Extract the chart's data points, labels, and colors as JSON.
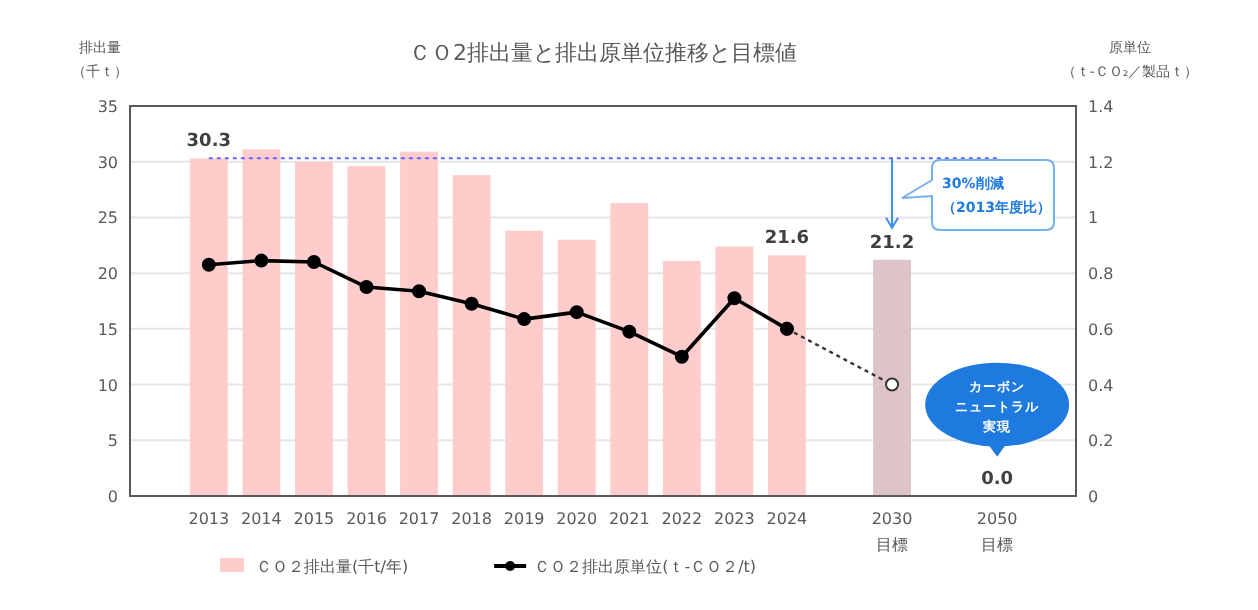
{
  "chart_data": {
    "type": "bar",
    "title": "ＣＯ2排出量と排出原単位推移と目標値",
    "ylabel": "排出量（千ｔ）",
    "y2label": "原単位（ｔ-ＣＯ₂／製品ｔ）",
    "categories": [
      "2013",
      "2014",
      "2015",
      "2016",
      "2017",
      "2018",
      "2019",
      "2020",
      "2021",
      "2022",
      "2023",
      "2024",
      null,
      "2030\n目標",
      null,
      "2050\n目標"
    ],
    "series": [
      {
        "name": "ＣＯ２排出量(千t/年)",
        "color": "#ffcccc",
        "colors": [
          "#ffcccc",
          "#ffcccc",
          "#ffcccc",
          "#ffcccc",
          "#ffcccc",
          "#ffcccc",
          "#ffcccc",
          "#ffcccc",
          "#ffcccc",
          "#ffcccc",
          "#ffcccc",
          "#ffcccc",
          null,
          "#dcc4c8",
          null,
          "#ffcccc"
        ],
        "values": [
          30.3,
          31.1,
          30.0,
          29.6,
          30.9,
          28.8,
          23.8,
          23.0,
          26.3,
          21.1,
          22.4,
          21.6,
          null,
          21.2,
          null,
          0.0
        ],
        "value_labels": [
          "30.3",
          null,
          null,
          null,
          null,
          null,
          null,
          null,
          null,
          null,
          null,
          "21.6",
          null,
          "21.2",
          null,
          "0.0"
        ]
      },
      {
        "name": "ＣＯ２排出原単位(ｔ-ＣＯ２/t)",
        "type": "line",
        "axis": "y2",
        "color": "#000000",
        "marker": "circle",
        "line_style": "solid",
        "values": [
          0.83,
          0.845,
          0.84,
          0.75,
          0.735,
          0.69,
          0.635,
          0.66,
          0.59,
          0.5,
          0.71,
          0.6,
          null,
          null,
          null,
          null
        ]
      },
      {
        "type": "line",
        "axis": "y2",
        "color": "#333333",
        "marker": "circle",
        "line_style": "dotted",
        "values": [
          null,
          null,
          null,
          null,
          null,
          null,
          null,
          null,
          null,
          null,
          null,
          0.6,
          null,
          0.4,
          null,
          null
        ]
      }
    ],
    "ylim": [
      0,
      35
    ],
    "yticks": [
      0,
      5,
      10,
      15,
      20,
      25,
      30,
      35
    ],
    "y2lim": [
      0,
      1.4
    ],
    "y2ticks": [
      0,
      0.2,
      0.4,
      0.6,
      0.8,
      1,
      1.2,
      1.4
    ],
    "ref_lines": [
      {
        "axis": "y",
        "value": 30.3,
        "color": "#6666ff",
        "line_style": "dotted"
      }
    ],
    "annotations": [
      "30%削減（2013年度比）",
      "カーボン",
      "ニュートラル",
      "実現"
    ],
    "grid": "y",
    "legend": "bottom"
  }
}
